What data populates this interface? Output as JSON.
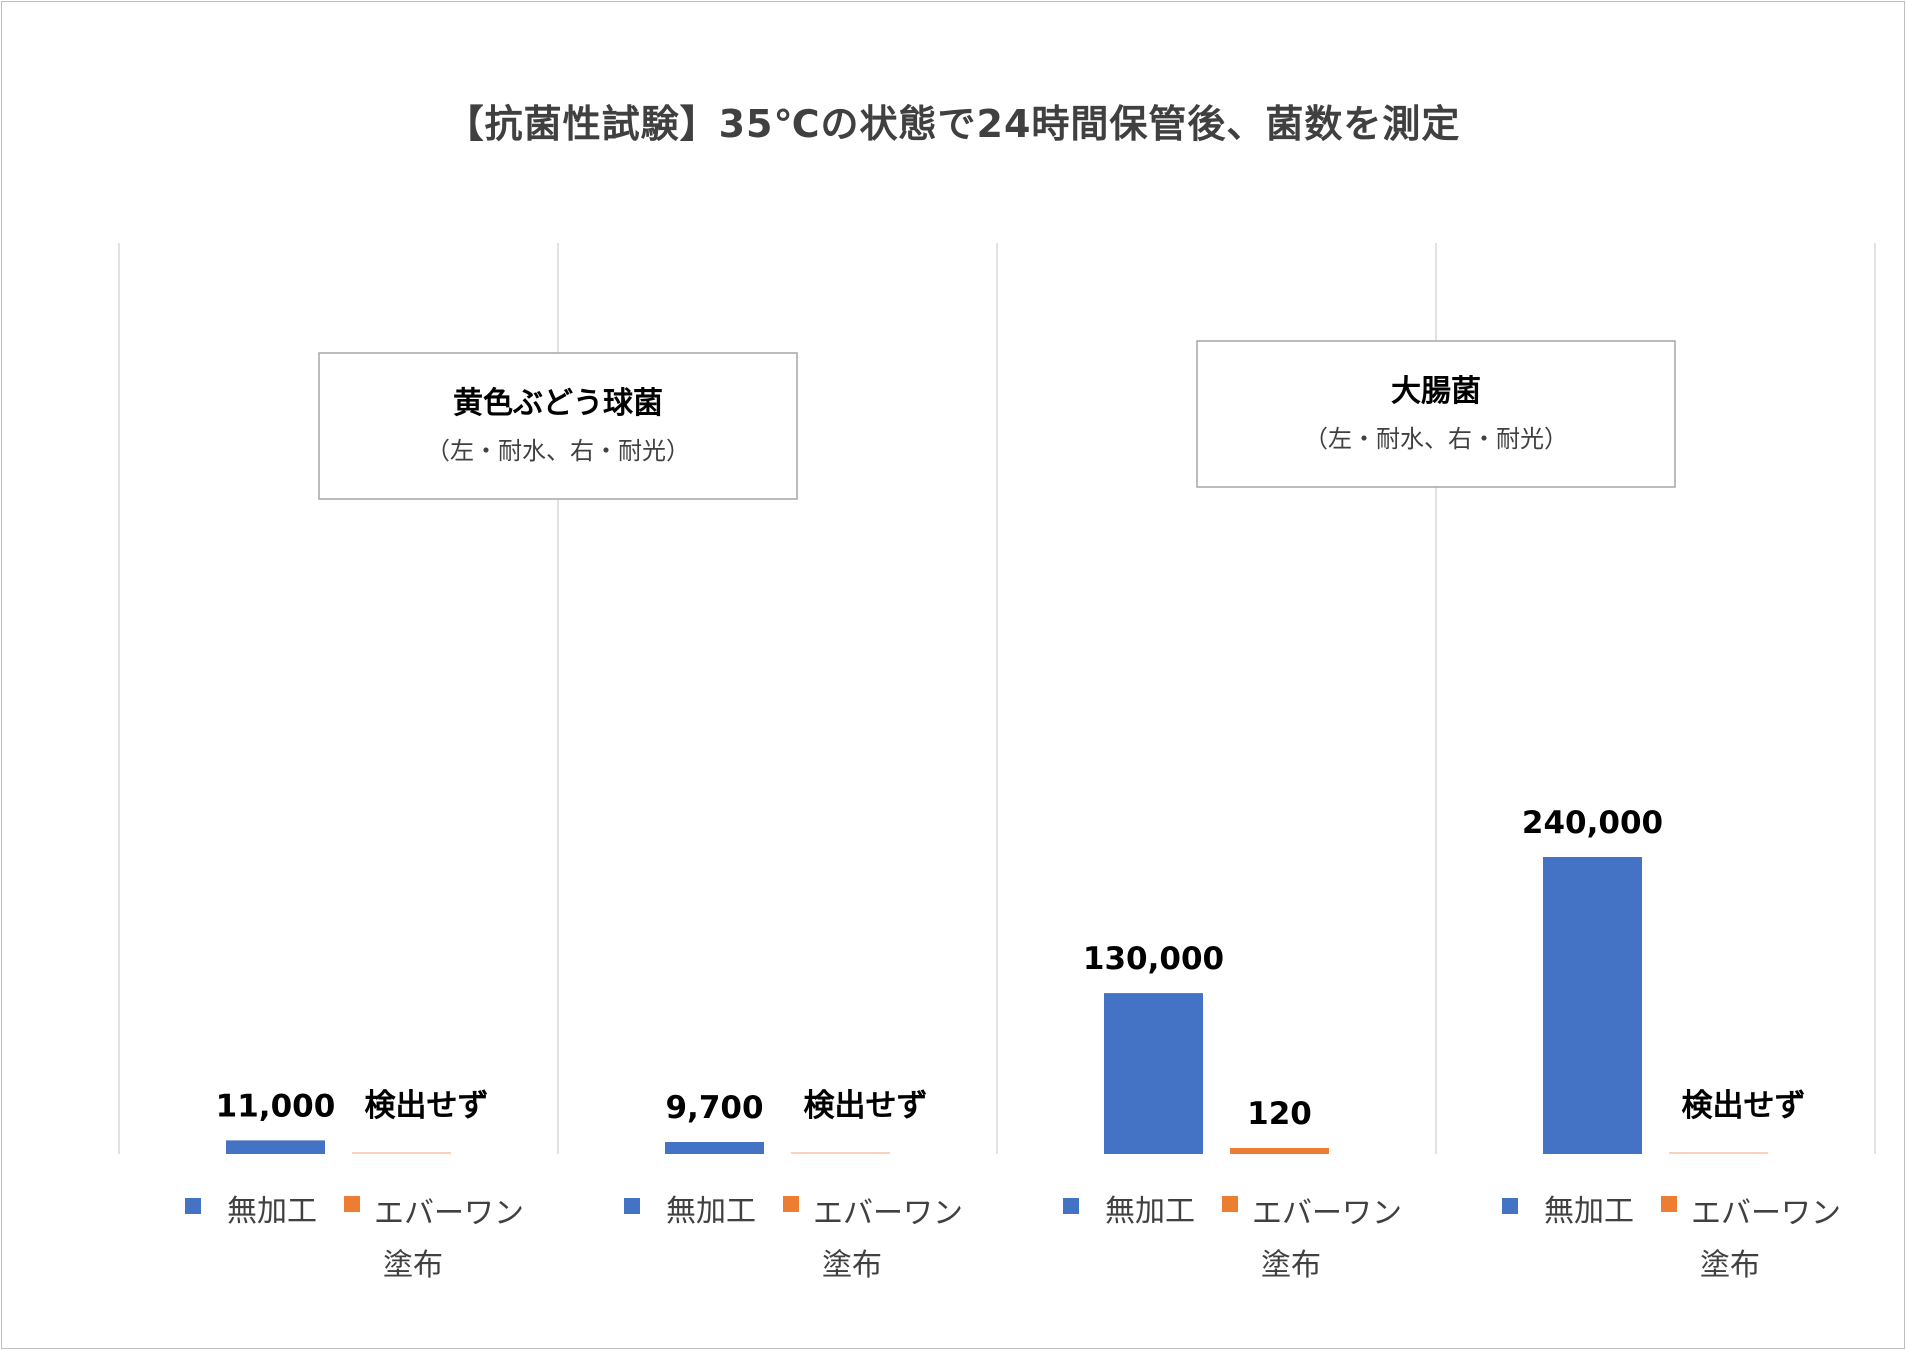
{
  "chart_data": {
    "type": "bar",
    "title": "【抗菌性試験】35℃の状態で24時間保管後、菌数を測定",
    "colors": {
      "series_a": "#4472C4",
      "series_b": "#ED7D31"
    },
    "groups": [
      {
        "name": "黄色ぶどう球菌",
        "note": "（左・耐水、右・耐光）",
        "panels": [
          {
            "values": [
              11000,
              0
            ],
            "labels": [
              "11,000",
              "検出せず"
            ]
          },
          {
            "values": [
              9700,
              0
            ],
            "labels": [
              "9,700",
              "検出せず"
            ]
          }
        ]
      },
      {
        "name": "大腸菌",
        "note": "（左・耐水、右・耐光）",
        "panels": [
          {
            "values": [
              130000,
              120
            ],
            "labels": [
              "130,000",
              "120"
            ]
          },
          {
            "values": [
              240000,
              0
            ],
            "labels": [
              "240,000",
              "検出せず"
            ]
          }
        ]
      }
    ],
    "legend": [
      {
        "name": "無加工",
        "color": "#4472C4"
      },
      {
        "name": "エバーワン塗布",
        "color": "#ED7D31"
      }
    ],
    "legend_lines": [
      "無加工",
      "エバーワン",
      "塗布"
    ],
    "ylim": [
      0,
      300000
    ],
    "grid": false,
    "legend_position": "bottom"
  }
}
